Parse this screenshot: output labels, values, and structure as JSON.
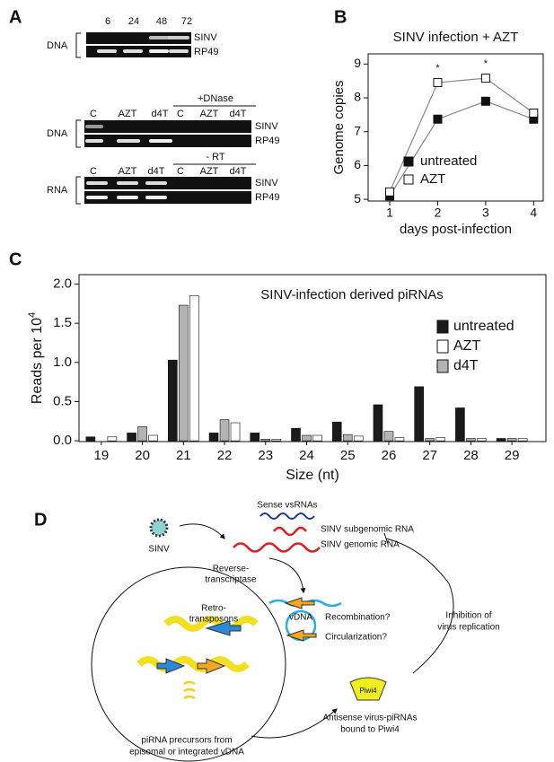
{
  "panel_labels": [
    "A",
    "B",
    "C",
    "D"
  ],
  "panel_a": {
    "gel1": {
      "lanes": [
        "6",
        "24",
        "48",
        "72"
      ],
      "rows": [
        "SINV",
        "RP49"
      ],
      "sample": "DNA"
    },
    "gel2": {
      "treatment": "+DNase",
      "lanes": [
        "C",
        "AZT",
        "d4T",
        "C",
        "AZT",
        "d4T"
      ],
      "rows": [
        "SINV",
        "RP49"
      ],
      "sample": "DNA"
    },
    "gel3": {
      "treatment": "- RT",
      "lanes": [
        "C",
        "AZT",
        "d4T",
        "C",
        "AZT",
        "d4T"
      ],
      "rows": [
        "SINV",
        "RP49"
      ],
      "sample": "RNA"
    }
  },
  "chart_data": [
    {
      "type": "line",
      "title": "SINV infection + AZT",
      "x_label": "days post-infection",
      "y_label": "Genome copies",
      "x": [
        1,
        2,
        3,
        4
      ],
      "xlim": [
        0.55,
        4.2
      ],
      "xticks": [
        1,
        2,
        3,
        4
      ],
      "ylim": [
        4.95,
        9.3
      ],
      "yticks": [
        5,
        6,
        7,
        8,
        9
      ],
      "series": [
        {
          "name": "untreated",
          "color": "#111111",
          "values": [
            5.1,
            7.37,
            7.9,
            7.37
          ]
        },
        {
          "name": "AZT",
          "color": "#ffffff",
          "values": [
            5.22,
            8.45,
            8.58,
            7.55
          ]
        }
      ],
      "annotations": [
        {
          "text": "*",
          "x": 2
        },
        {
          "text": "*",
          "x": 3
        }
      ],
      "legend": "lower right"
    },
    {
      "type": "bar",
      "title": "SINV-infection derived piRNAs",
      "x_label": "Size (nt)",
      "y_label": "Reads per 10",
      "y_label_exponent": "4",
      "categories": [
        "19",
        "20",
        "21",
        "22",
        "23",
        "24",
        "25",
        "26",
        "27",
        "28",
        "29"
      ],
      "ylim": [
        -0.01,
        2.12
      ],
      "yticks": [
        {
          "value": 0,
          "label": "0.0"
        },
        0.5,
        {
          "value": 1,
          "label": "1.0"
        },
        1.5,
        {
          "value": 2,
          "label": "2.0"
        }
      ],
      "series": [
        {
          "name": "untreated",
          "color": "#1a1a1a",
          "values": [
            0.05,
            0.1,
            1.03,
            0.1,
            0.1,
            0.16,
            0.24,
            0.46,
            0.69,
            0.42,
            0.03
          ]
        },
        {
          "name": "AZT",
          "color": "#ffffff",
          "values": [
            0.05,
            0.07,
            1.85,
            0.23,
            0.02,
            0.07,
            0.06,
            0.04,
            0.04,
            0.03,
            0.03
          ]
        },
        {
          "name": "d4T",
          "color": "#b3b3b3",
          "values": [
            0,
            0.18,
            1.73,
            0.27,
            0.02,
            0.07,
            0.08,
            0.12,
            0.03,
            0.03,
            0.03
          ]
        }
      ],
      "legend": "upper right"
    }
  ],
  "panel_d": {
    "sense_vsrnas": "Sense vsRNAs",
    "subgenomic": "SINV subgenomic RNA",
    "genomic": "SINV genomic RNA",
    "virus": "SINV",
    "rt": [
      "Reverse-",
      "transcriptase"
    ],
    "retro": [
      "Retro-",
      "transposons"
    ],
    "vdna": "vDNA",
    "recombination": "Recombination?",
    "circularization": "Circularization?",
    "inhibition": [
      "Inhibition of",
      "virus replication"
    ],
    "piwi": "Piwi4",
    "antisense": [
      "Antisense virus-piRNAs",
      "bound to Piwi4"
    ],
    "precursors": [
      "piRNA precursors  from",
      "episomal or integrated vDNA"
    ]
  }
}
